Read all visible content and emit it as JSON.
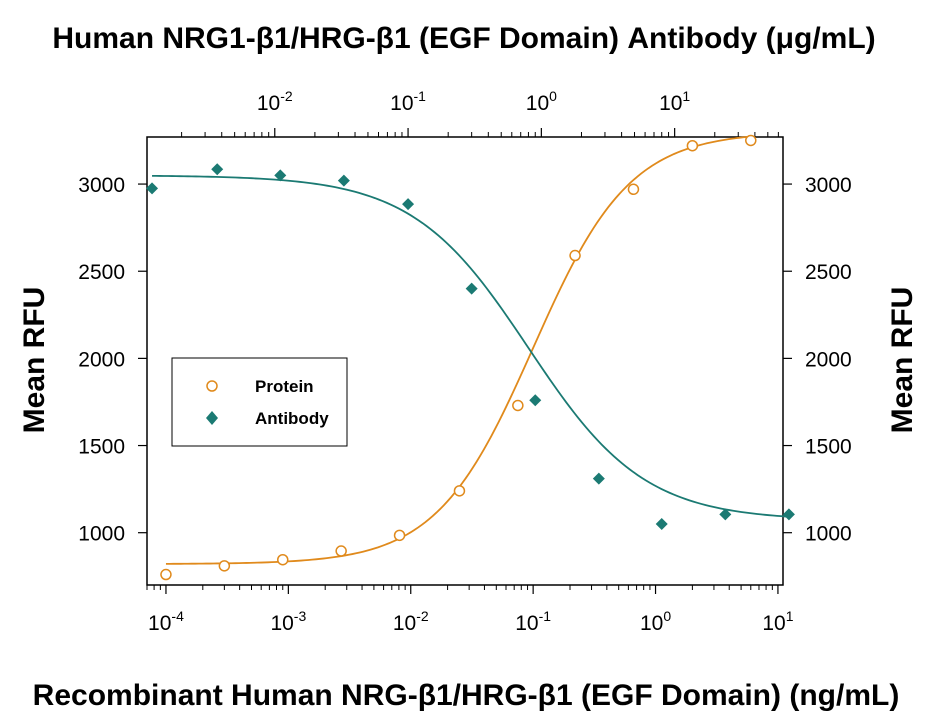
{
  "colors": {
    "protein": "#e08a1c",
    "antibody": "#1b7a73",
    "axis": "#000000",
    "background": "#ffffff"
  },
  "chart_data": {
    "type": "scatter",
    "title": "Human NRG1-β1/HRG-β1 (EGF Domain) Antibody (μg/mL)",
    "xlabel": "Recombinant Human NRG-β1/HRG-β1 (EGF Domain) (ng/mL)",
    "ylabel": "Mean RFU",
    "ylabel_right": "Mean RFU",
    "x_scale": "log",
    "xlim": [
      7e-05,
      11
    ],
    "ylim": [
      700,
      3270
    ],
    "x_ticks": [
      {
        "base": "10",
        "exp": "-4",
        "value": 0.0001
      },
      {
        "base": "10",
        "exp": "-3",
        "value": 0.001
      },
      {
        "base": "10",
        "exp": "-2",
        "value": 0.01
      },
      {
        "base": "10",
        "exp": "-1",
        "value": 0.1
      },
      {
        "base": "10",
        "exp": "0",
        "value": 1
      },
      {
        "base": "10",
        "exp": "1",
        "value": 10
      }
    ],
    "top_axis": {
      "label": "Human NRG1-β1/HRG-β1 (EGF Domain) Antibody (μg/mL)",
      "scale": "log",
      "xlim": [
        0.0011,
        65
      ],
      "ticks": [
        {
          "base": "10",
          "exp": "-2",
          "value": 0.01
        },
        {
          "base": "10",
          "exp": "-1",
          "value": 0.1
        },
        {
          "base": "10",
          "exp": "0",
          "value": 1
        },
        {
          "base": "10",
          "exp": "1",
          "value": 10
        }
      ]
    },
    "y_ticks": [
      1000,
      1500,
      2000,
      2500,
      3000
    ],
    "legend": {
      "placement": "center-left",
      "entries": [
        "Protein",
        "Antibody"
      ]
    },
    "grid": false,
    "series": [
      {
        "name": "Protein",
        "marker": "open-circle",
        "axis": "bottom",
        "x": [
          0.0001,
          0.0003,
          0.0009,
          0.0027,
          0.0081,
          0.025,
          0.075,
          0.22,
          0.66,
          2.0,
          6.0
        ],
        "y": [
          760,
          810,
          845,
          895,
          985,
          1240,
          1730,
          2590,
          2970,
          3220,
          3250
        ],
        "fit": {
          "bottom": 820,
          "top": 3300,
          "ec50": 0.1,
          "hill": 1.1
        }
      },
      {
        "name": "Antibody",
        "marker": "filled-diamond",
        "axis": "top",
        "x": [
          0.0012,
          0.0037,
          0.011,
          0.033,
          0.1,
          0.3,
          0.9,
          2.7,
          8.0,
          24.0,
          72.0
        ],
        "y": [
          2975,
          3085,
          3050,
          3020,
          2885,
          2400,
          1760,
          1310,
          1050,
          1105,
          1105
        ],
        "fit": {
          "bottom": 1070,
          "top": 3050,
          "ec50": 0.8,
          "hill": 1.0
        }
      }
    ]
  }
}
